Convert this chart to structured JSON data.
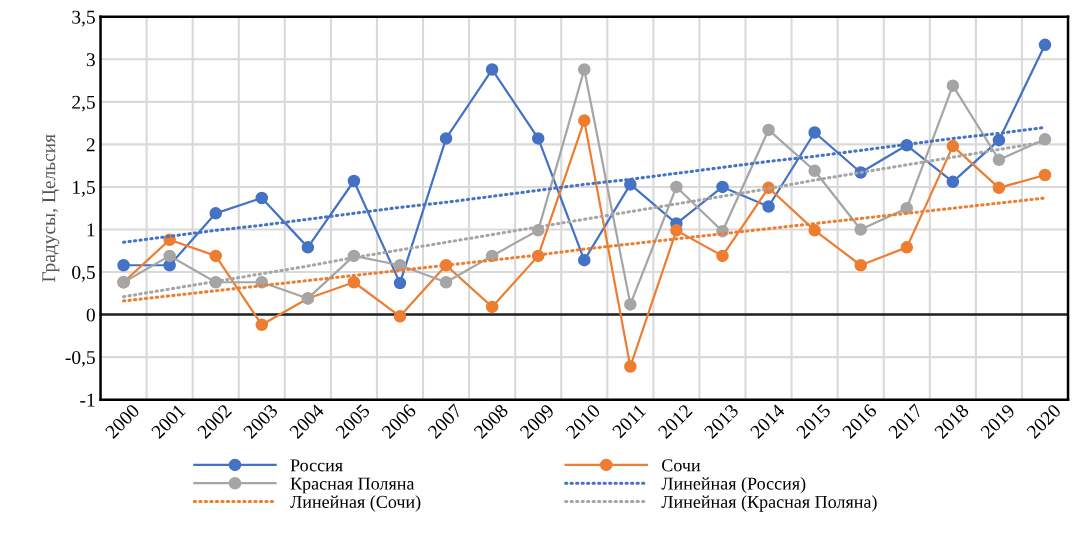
{
  "chart_data": {
    "type": "line",
    "ylabel": "Градусы, Цельсия",
    "categories": [
      "2000",
      "2001",
      "2002",
      "2003",
      "2004",
      "2005",
      "2006",
      "2007",
      "2008",
      "2009",
      "2010",
      "2011",
      "2012",
      "2013",
      "2014",
      "2015",
      "2016",
      "2017",
      "2018",
      "2019",
      "2020"
    ],
    "series": [
      {
        "name": "Россия",
        "color": "#4472c4",
        "marker": "circle",
        "values": [
          0.58,
          0.58,
          1.19,
          1.37,
          0.79,
          1.57,
          0.37,
          2.07,
          2.88,
          2.07,
          0.64,
          1.53,
          1.07,
          1.5,
          1.27,
          2.14,
          1.67,
          1.99,
          1.56,
          2.05,
          3.17
        ]
      },
      {
        "name": "Сочи",
        "color": "#ed7d31",
        "marker": "circle",
        "values": [
          0.38,
          0.88,
          0.69,
          -0.12,
          0.19,
          0.38,
          -0.02,
          0.58,
          0.09,
          0.69,
          2.28,
          -0.61,
          0.99,
          0.69,
          1.49,
          0.99,
          0.58,
          0.79,
          1.98,
          1.49,
          1.64
        ]
      },
      {
        "name": "Красная Поляна",
        "color": "#a5a5a5",
        "marker": "circle",
        "values": [
          0.38,
          0.69,
          0.38,
          0.38,
          0.19,
          0.69,
          0.58,
          0.38,
          0.69,
          0.99,
          2.88,
          0.12,
          1.5,
          0.98,
          2.17,
          1.69,
          1.0,
          1.25,
          2.69,
          1.82,
          2.06
        ]
      },
      {
        "name": "Линейная (Россия)",
        "color": "#4472c4",
        "marker": "none",
        "line_style": "dotted",
        "values": [
          0.85,
          0.92,
          0.99,
          1.05,
          1.12,
          1.19,
          1.26,
          1.32,
          1.39,
          1.46,
          1.53,
          1.59,
          1.66,
          1.73,
          1.8,
          1.86,
          1.93,
          2.0,
          2.07,
          2.13,
          2.2
        ]
      },
      {
        "name": "Линейная (Сочи)",
        "color": "#ed7d31",
        "marker": "none",
        "line_style": "dotted",
        "values": [
          0.16,
          0.22,
          0.28,
          0.34,
          0.4,
          0.46,
          0.52,
          0.58,
          0.64,
          0.7,
          0.77,
          0.83,
          0.89,
          0.95,
          1.01,
          1.07,
          1.13,
          1.19,
          1.25,
          1.31,
          1.37
        ]
      },
      {
        "name": "Линейная (Красная Поляна)",
        "color": "#a5a5a5",
        "marker": "none",
        "line_style": "dotted",
        "values": [
          0.21,
          0.3,
          0.39,
          0.48,
          0.57,
          0.67,
          0.76,
          0.85,
          0.94,
          1.03,
          1.12,
          1.21,
          1.3,
          1.39,
          1.48,
          1.58,
          1.67,
          1.76,
          1.85,
          1.94,
          2.03
        ]
      }
    ],
    "ylim": [
      -1,
      3.5
    ],
    "yticks": [
      {
        "value": -1,
        "label": "-1"
      },
      {
        "value": -0.5,
        "label": "-0,5"
      },
      0,
      {
        "value": 0.5,
        "label": "0,5"
      },
      1,
      {
        "value": 1.5,
        "label": "1,5"
      },
      2,
      {
        "value": 2.5,
        "label": "2,5"
      },
      3,
      {
        "value": 3.5,
        "label": "3,5"
      }
    ],
    "grid": true,
    "legend": "bottom"
  }
}
